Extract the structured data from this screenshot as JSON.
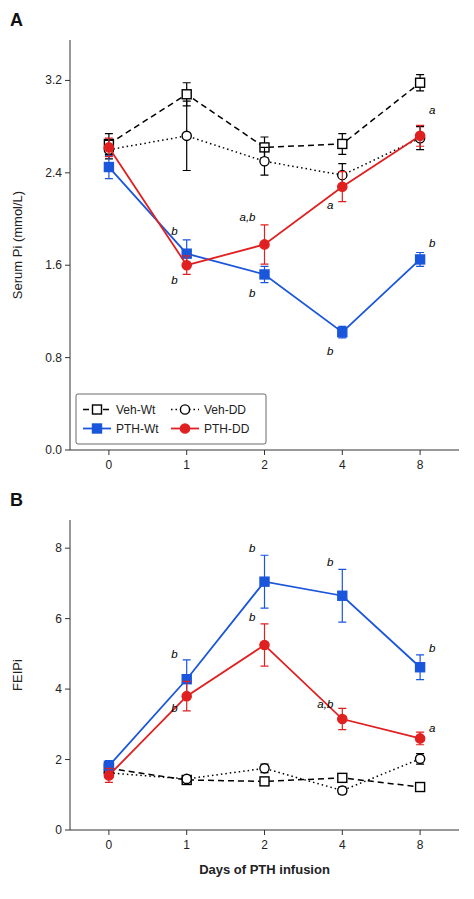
{
  "chart_data": [
    {
      "type": "line",
      "title": "A",
      "ylabel": "Serum Pi (mmol/L)",
      "categories": [
        "0",
        "1",
        "2",
        "4",
        "8"
      ],
      "ylim": [
        0.0,
        3.55
      ],
      "yticks": [
        {
          "value": 0.0,
          "label": "0.0"
        },
        0.8,
        1.6,
        2.4,
        3.2
      ],
      "grid": false,
      "legend": "lower left",
      "series": [
        {
          "name": "Veh-Wt",
          "color": "#000000",
          "marker": "open-square",
          "line_style": "dashed",
          "values": [
            2.65,
            3.08,
            2.62,
            2.65,
            3.18
          ],
          "errors": [
            0.09,
            0.1,
            0.09,
            0.09,
            0.07
          ]
        },
        {
          "name": "Veh-DD",
          "color": "#000000",
          "marker": "open-circle",
          "line_style": "dotted",
          "values": [
            2.6,
            2.72,
            2.5,
            2.38,
            2.7
          ],
          "errors": [
            0.08,
            0.3,
            0.12,
            0.1,
            0.1
          ]
        },
        {
          "name": "PTH-Wt",
          "color": "#1a56db",
          "marker": "square",
          "line_style": "solid",
          "values": [
            2.45,
            1.7,
            1.52,
            1.02,
            1.65
          ],
          "errors": [
            0.1,
            0.12,
            0.07,
            0.05,
            0.06
          ]
        },
        {
          "name": "PTH-DD",
          "color": "#e02020",
          "marker": "circle",
          "line_style": "solid",
          "values": [
            2.62,
            1.6,
            1.78,
            2.28,
            2.72
          ],
          "errors": [
            0.08,
            0.08,
            0.17,
            0.13,
            0.09
          ]
        }
      ],
      "annotations": [
        {
          "text": "b",
          "category": "1",
          "y": 1.9
        },
        {
          "text": "b",
          "category": "1",
          "y": 1.47
        },
        {
          "text": "b",
          "category": "2",
          "y": 1.36
        },
        {
          "text": "a,b",
          "category": "2",
          "y": 2.02
        },
        {
          "text": "a",
          "category": "4",
          "y": 2.12
        },
        {
          "text": "b",
          "category": "4",
          "y": 0.86
        },
        {
          "text": "a",
          "category": "8",
          "y": 2.94
        },
        {
          "text": "b",
          "category": "8",
          "y": 1.79
        }
      ]
    },
    {
      "type": "line",
      "title": "B",
      "ylabel": "FEIPi",
      "xlabel": "Days of PTH infusion",
      "categories": [
        "0",
        "1",
        "2",
        "4",
        "8"
      ],
      "ylim": [
        0,
        8.8
      ],
      "yticks": [
        0,
        2,
        4,
        6,
        8
      ],
      "grid": false,
      "series": [
        {
          "name": "Veh-Wt",
          "color": "#000000",
          "marker": "open-square",
          "line_style": "dashed",
          "values": [
            1.75,
            1.42,
            1.38,
            1.48,
            1.22
          ],
          "errors": [
            0.1,
            0.08,
            0.07,
            0.08,
            0.08
          ]
        },
        {
          "name": "Veh-DD",
          "color": "#000000",
          "marker": "open-circle",
          "line_style": "dotted",
          "values": [
            1.62,
            1.45,
            1.75,
            1.12,
            2.02
          ],
          "errors": [
            0.12,
            0.08,
            0.12,
            0.1,
            0.15
          ]
        },
        {
          "name": "PTH-Wt",
          "color": "#1a56db",
          "marker": "square",
          "line_style": "solid",
          "values": [
            1.82,
            4.28,
            7.05,
            6.65,
            4.62
          ],
          "errors": [
            0.15,
            0.55,
            0.75,
            0.75,
            0.35
          ]
        },
        {
          "name": "PTH-DD",
          "color": "#e02020",
          "marker": "circle",
          "line_style": "solid",
          "values": [
            1.55,
            3.8,
            5.25,
            3.15,
            2.6
          ],
          "errors": [
            0.2,
            0.42,
            0.6,
            0.3,
            0.18
          ]
        }
      ],
      "annotations": [
        {
          "text": "b",
          "category": "1",
          "y": 5.0
        },
        {
          "text": "b",
          "category": "1",
          "y": 3.45
        },
        {
          "text": "b",
          "category": "2",
          "y": 8.0
        },
        {
          "text": "b",
          "category": "2",
          "y": 6.05
        },
        {
          "text": "b",
          "category": "4",
          "y": 7.62
        },
        {
          "text": "a,b",
          "category": "4",
          "y": 3.58
        },
        {
          "text": "b",
          "category": "8",
          "y": 5.18
        },
        {
          "text": "a",
          "category": "8",
          "y": 2.9
        }
      ]
    }
  ]
}
